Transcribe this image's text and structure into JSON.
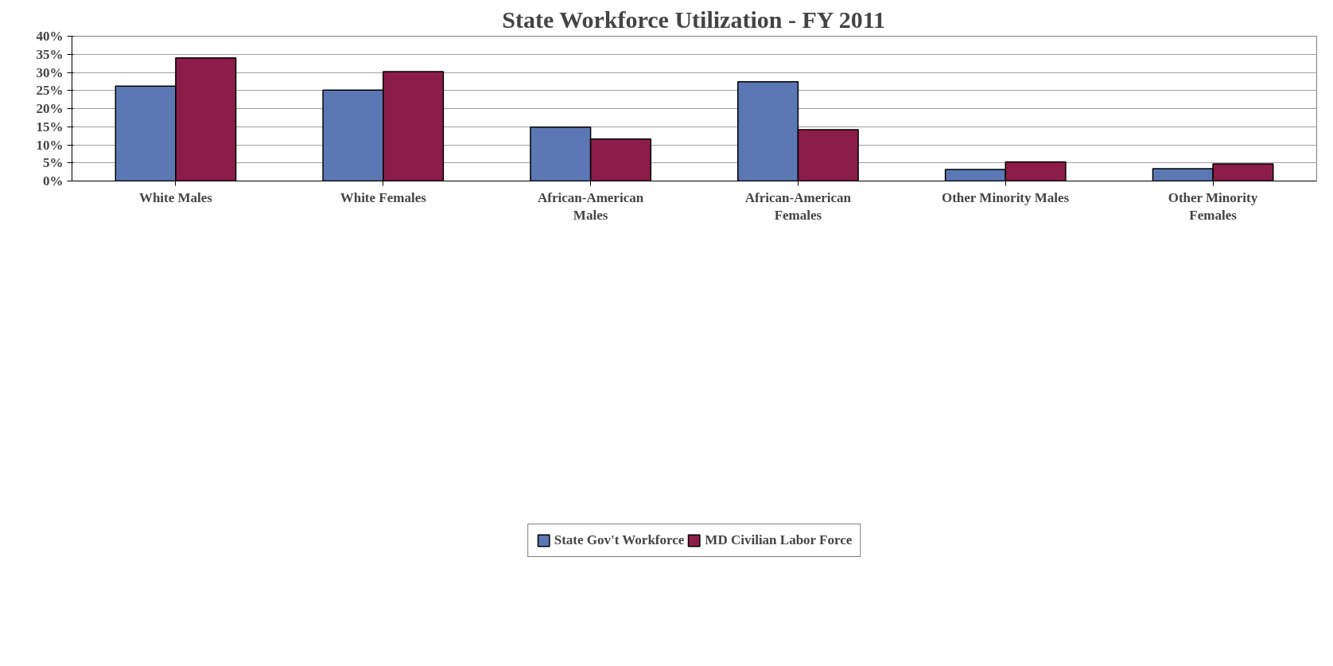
{
  "chart_data": {
    "type": "bar",
    "title": "State Workforce Utilization - FY 2011",
    "categories": [
      "White Males",
      "White Females",
      "African-American\nMales",
      "African-American\nFemales",
      "Other Minority Males",
      "Other Minority\nFemales"
    ],
    "series": [
      {
        "name": "State Gov't Workforce",
        "color": "#5b78b4",
        "values": [
          26.2,
          25.1,
          14.9,
          27.4,
          3.2,
          3.4
        ]
      },
      {
        "name": "MD Civilian Labor Force",
        "color": "#8c1d48",
        "values": [
          34.0,
          30.2,
          11.6,
          14.2,
          5.3,
          4.7
        ]
      }
    ],
    "ylim": [
      0,
      40
    ],
    "yticks": [
      {
        "value": 0,
        "label": "0%"
      },
      {
        "value": 5,
        "label": "5%"
      },
      {
        "value": 10,
        "label": "10%"
      },
      {
        "value": 15,
        "label": "15%"
      },
      {
        "value": 20,
        "label": "20%"
      },
      {
        "value": 25,
        "label": "25%"
      },
      {
        "value": 30,
        "label": "30%"
      },
      {
        "value": 35,
        "label": "35%"
      },
      {
        "value": 40,
        "label": "40%"
      }
    ],
    "grid": "y",
    "legend": "bottom"
  }
}
